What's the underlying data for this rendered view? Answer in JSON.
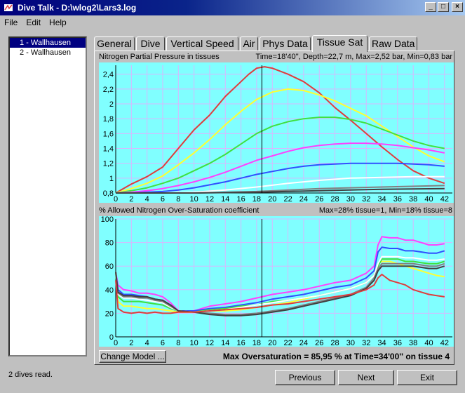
{
  "window": {
    "title": "Dive Talk  -  D:\\wlog2\\Lars3.log",
    "minimize": "_",
    "maximize": "□",
    "close": "×"
  },
  "menu": [
    "File",
    "Edit",
    "Help"
  ],
  "dives": [
    "1 - Wallhausen",
    "2 - Wallhausen"
  ],
  "tabs": [
    "General",
    "Dive",
    "Vertical Speed",
    "Air",
    "Phys Data",
    "Tissue Sat",
    "Raw Data"
  ],
  "active_tab": "Tissue Sat",
  "chart1_caption": {
    "title": "Nitrogen Partial Pressure in tissues",
    "info": "Time=18'40'', Depth=22,7 m, Max=2,52 bar, Min=0,83 bar"
  },
  "chart2_caption": {
    "title": "% Allowed Nitrogen Over-Saturation coefficient",
    "info": "Max=28% tissue=1, Min=18% tissue=8"
  },
  "change_model_label": "Change Model ...",
  "max_oversaturation": "Max Oversaturation = 85,95 % at Time=34'00'' on tissue 4",
  "status": "2 dives read.",
  "nav": {
    "previous": "Previous",
    "next": "Next",
    "exit": "Exit"
  },
  "chart_data": [
    {
      "type": "line",
      "xlim": [
        0,
        43
      ],
      "ylim": [
        0.8,
        2.52
      ],
      "x_ticks": [
        0,
        2,
        4,
        6,
        8,
        10,
        12,
        14,
        16,
        18,
        20,
        22,
        24,
        26,
        28,
        30,
        32,
        34,
        36,
        38,
        40,
        42
      ],
      "y_ticks": [
        0.8,
        1,
        1.2,
        1.4,
        1.6,
        1.8,
        2,
        2.2,
        2.4
      ],
      "y_tick_labels": [
        "0,8",
        "1",
        "1,2",
        "1,4",
        "1,6",
        "1,8",
        "2",
        "2,2",
        "2,4"
      ],
      "cursor_x": 18.67,
      "background": "#80ffff",
      "series": [
        {
          "color": "#e03c3c",
          "x": [
            0,
            2,
            4,
            6,
            8,
            10,
            12,
            14,
            16,
            17,
            18,
            19,
            20,
            22,
            24,
            26,
            28,
            30,
            32,
            34,
            36,
            38,
            40,
            42
          ],
          "y": [
            0.8,
            0.92,
            1.02,
            1.15,
            1.4,
            1.65,
            1.85,
            2.1,
            2.3,
            2.4,
            2.48,
            2.5,
            2.48,
            2.4,
            2.3,
            2.15,
            1.95,
            1.78,
            1.6,
            1.42,
            1.25,
            1.1,
            1.0,
            0.93
          ]
        },
        {
          "color": "#ffff30",
          "x": [
            0,
            2,
            4,
            6,
            8,
            10,
            12,
            14,
            16,
            18,
            20,
            22,
            24,
            26,
            28,
            30,
            32,
            34,
            36,
            38,
            40,
            42
          ],
          "y": [
            0.8,
            0.86,
            0.93,
            1.03,
            1.18,
            1.34,
            1.52,
            1.72,
            1.9,
            2.06,
            2.16,
            2.2,
            2.18,
            2.12,
            2.04,
            1.94,
            1.84,
            1.7,
            1.56,
            1.42,
            1.3,
            1.22
          ]
        },
        {
          "color": "#40e040",
          "x": [
            0,
            2,
            4,
            6,
            8,
            10,
            12,
            14,
            16,
            18,
            20,
            22,
            24,
            26,
            28,
            30,
            32,
            34,
            36,
            38,
            40,
            42
          ],
          "y": [
            0.8,
            0.83,
            0.87,
            0.93,
            1.0,
            1.1,
            1.2,
            1.32,
            1.46,
            1.6,
            1.7,
            1.76,
            1.8,
            1.82,
            1.82,
            1.79,
            1.74,
            1.66,
            1.58,
            1.5,
            1.44,
            1.4
          ]
        },
        {
          "color": "#ff40ff",
          "x": [
            0,
            2,
            4,
            6,
            8,
            10,
            12,
            14,
            16,
            18,
            20,
            22,
            24,
            26,
            28,
            30,
            32,
            34,
            36,
            38,
            40,
            42
          ],
          "y": [
            0.8,
            0.81,
            0.83,
            0.86,
            0.9,
            0.95,
            1.01,
            1.08,
            1.16,
            1.24,
            1.3,
            1.36,
            1.41,
            1.44,
            1.46,
            1.47,
            1.47,
            1.46,
            1.44,
            1.41,
            1.38,
            1.34
          ]
        },
        {
          "color": "#3050ff",
          "x": [
            0,
            2,
            4,
            6,
            8,
            10,
            12,
            14,
            16,
            18,
            20,
            22,
            24,
            26,
            28,
            30,
            32,
            34,
            36,
            38,
            40,
            42
          ],
          "y": [
            0.8,
            0.8,
            0.81,
            0.82,
            0.84,
            0.87,
            0.91,
            0.95,
            1.0,
            1.05,
            1.09,
            1.13,
            1.16,
            1.18,
            1.19,
            1.2,
            1.2,
            1.2,
            1.2,
            1.19,
            1.18,
            1.16
          ]
        },
        {
          "color": "#ffffff",
          "x": [
            0,
            6,
            10,
            14,
            18,
            22,
            26,
            30,
            34,
            38,
            42
          ],
          "y": [
            0.8,
            0.8,
            0.81,
            0.84,
            0.88,
            0.93,
            0.97,
            1.0,
            1.01,
            1.02,
            1.02
          ]
        },
        {
          "color": "#808080",
          "x": [
            0,
            10,
            18,
            26,
            34,
            42
          ],
          "y": [
            0.8,
            0.8,
            0.82,
            0.86,
            0.88,
            0.9
          ]
        },
        {
          "color": "#404040",
          "x": [
            0,
            10,
            18,
            26,
            34,
            42
          ],
          "y": [
            0.8,
            0.8,
            0.81,
            0.83,
            0.85,
            0.86
          ]
        }
      ]
    },
    {
      "type": "line",
      "xlim": [
        0,
        43
      ],
      "ylim": [
        0,
        100
      ],
      "x_ticks": [
        0,
        2,
        4,
        6,
        8,
        10,
        12,
        14,
        16,
        18,
        20,
        22,
        24,
        26,
        28,
        30,
        32,
        34,
        36,
        38,
        40,
        42
      ],
      "y_ticks": [
        0,
        20,
        40,
        60,
        80,
        100
      ],
      "cursor_x": 18.67,
      "background": "#80ffff",
      "series": [
        {
          "color": "#ff40ff",
          "x": [
            0,
            0.3,
            1,
            2,
            3,
            4,
            5,
            6,
            7,
            8,
            10,
            12,
            14,
            16,
            18,
            20,
            22,
            24,
            26,
            28,
            30,
            32,
            33,
            33.5,
            34,
            35,
            36,
            37,
            38,
            39,
            40,
            41,
            42
          ],
          "y": [
            55,
            44,
            40,
            39,
            37,
            37,
            36,
            34,
            29,
            22,
            22,
            26,
            28,
            30,
            33,
            36,
            38,
            40,
            43,
            46,
            48,
            54,
            60,
            78,
            85,
            84,
            84,
            82,
            82,
            80,
            78,
            78,
            79
          ]
        },
        {
          "color": "#3050ff",
          "x": [
            0,
            0.3,
            1,
            2,
            3,
            4,
            5,
            6,
            7,
            8,
            10,
            12,
            14,
            16,
            18,
            20,
            22,
            24,
            26,
            28,
            30,
            32,
            33,
            33.5,
            34,
            35,
            36,
            37,
            38,
            39,
            40,
            41,
            42
          ],
          "y": [
            55,
            40,
            36,
            36,
            35,
            34,
            32,
            31,
            27,
            22,
            22,
            24,
            25,
            27,
            29,
            32,
            34,
            36,
            39,
            42,
            44,
            50,
            56,
            72,
            76,
            75,
            75,
            73,
            73,
            72,
            71,
            71,
            73
          ]
        },
        {
          "color": "#ffff30",
          "x": [
            0,
            0.3,
            1,
            2,
            3,
            4,
            5,
            6,
            7,
            8,
            10,
            12,
            14,
            16,
            18,
            20,
            22,
            24,
            26,
            28,
            30,
            32,
            33,
            33.5,
            34,
            35,
            36,
            37,
            38,
            39,
            40,
            41,
            42
          ],
          "y": [
            55,
            30,
            26,
            26,
            25,
            24,
            24,
            23,
            22,
            21,
            21,
            22,
            22,
            23,
            25,
            27,
            29,
            32,
            35,
            38,
            41,
            46,
            52,
            62,
            64,
            64,
            62,
            60,
            58,
            56,
            54,
            52,
            51
          ]
        },
        {
          "color": "#40e040",
          "x": [
            0,
            0.3,
            1,
            2,
            3,
            4,
            5,
            6,
            7,
            8,
            10,
            12,
            14,
            16,
            18,
            20,
            22,
            24,
            26,
            28,
            30,
            32,
            33,
            33.5,
            34,
            35,
            36,
            37,
            38,
            39,
            40,
            41,
            42
          ],
          "y": [
            55,
            34,
            30,
            30,
            30,
            29,
            28,
            27,
            24,
            22,
            21,
            23,
            24,
            26,
            27,
            30,
            31,
            33,
            35,
            38,
            41,
            46,
            52,
            60,
            66,
            66,
            66,
            64,
            64,
            63,
            62,
            62,
            64
          ]
        },
        {
          "color": "#ffffff",
          "x": [
            0,
            0.3,
            1,
            2,
            3,
            4,
            5,
            6,
            7,
            8,
            10,
            12,
            14,
            16,
            18,
            20,
            22,
            24,
            26,
            28,
            30,
            32,
            33,
            33.5,
            34,
            35,
            36,
            37,
            38,
            39,
            40,
            41,
            42
          ],
          "y": [
            55,
            36,
            33,
            33,
            32,
            31,
            30,
            29,
            25,
            22,
            21,
            22,
            23,
            25,
            27,
            29,
            31,
            33,
            35,
            38,
            41,
            46,
            52,
            62,
            68,
            68,
            68,
            67,
            67,
            66,
            65,
            65,
            66
          ]
        },
        {
          "color": "#808080",
          "x": [
            0,
            0.3,
            1,
            2,
            3,
            4,
            5,
            6,
            7,
            8,
            10,
            12,
            14,
            16,
            18,
            20,
            22,
            24,
            26,
            28,
            30,
            32,
            33,
            33.5,
            34,
            35,
            36,
            37,
            38,
            39,
            40,
            41,
            42
          ],
          "y": [
            55,
            37,
            34,
            34,
            33,
            33,
            31,
            30,
            26,
            22,
            21,
            20,
            19,
            19,
            20,
            22,
            24,
            27,
            30,
            33,
            36,
            42,
            50,
            58,
            62,
            62,
            62,
            62,
            62,
            61,
            60,
            60,
            62
          ]
        },
        {
          "color": "#404040",
          "x": [
            0,
            0.3,
            1,
            2,
            3,
            4,
            5,
            6,
            7,
            8,
            10,
            12,
            14,
            16,
            18,
            20,
            22,
            24,
            26,
            28,
            30,
            32,
            33,
            33.5,
            34,
            35,
            36,
            37,
            38,
            39,
            40,
            41,
            42
          ],
          "y": [
            55,
            38,
            35,
            35,
            34,
            34,
            32,
            31,
            27,
            22,
            21,
            19,
            18,
            18,
            19,
            21,
            23,
            26,
            29,
            32,
            35,
            41,
            48,
            56,
            60,
            60,
            60,
            60,
            60,
            59,
            58,
            58,
            60
          ]
        },
        {
          "color": "#e03c3c",
          "x": [
            0,
            0.3,
            1,
            2,
            3,
            4,
            5,
            6,
            7,
            8,
            10,
            12,
            14,
            16,
            18,
            20,
            22,
            24,
            26,
            28,
            30,
            32,
            33,
            33.5,
            34,
            35,
            36,
            37,
            38,
            39,
            40,
            41,
            42
          ],
          "y": [
            48,
            24,
            21,
            20,
            21,
            20,
            21,
            20,
            20,
            21,
            21,
            22,
            23,
            24,
            25,
            27,
            28,
            30,
            32,
            34,
            36,
            40,
            44,
            50,
            53,
            48,
            46,
            44,
            40,
            38,
            36,
            35,
            34
          ]
        }
      ]
    }
  ]
}
